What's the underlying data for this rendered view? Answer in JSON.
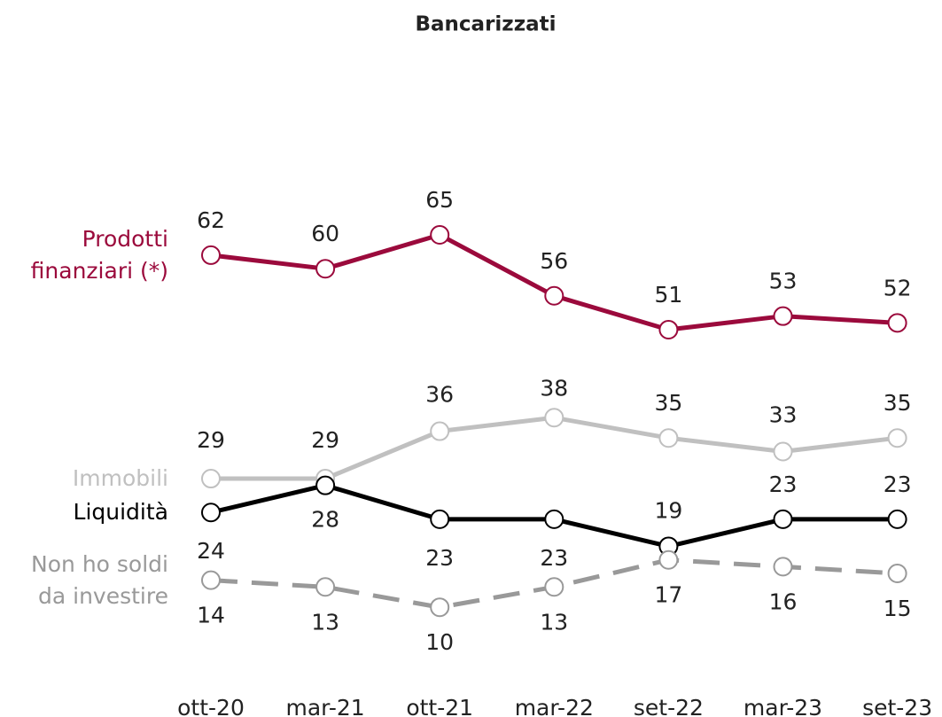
{
  "chart_data": {
    "type": "line",
    "title": "Bancarizzati",
    "categories": [
      "ott-20",
      "mar-21",
      "ott-21",
      "mar-22",
      "set-22",
      "mar-23",
      "set-23"
    ],
    "series": [
      {
        "name": "Prodotti finanziari (*)",
        "color": "#9b0a3c",
        "line_style": "solid",
        "values": [
          62,
          60,
          65,
          56,
          51,
          53,
          52
        ]
      },
      {
        "name": "Immobili",
        "color": "#c0c0c0",
        "line_style": "solid",
        "values": [
          29,
          29,
          36,
          38,
          35,
          33,
          35
        ]
      },
      {
        "name": "Liquidità",
        "color": "#000000",
        "line_style": "solid",
        "values": [
          24,
          28,
          23,
          23,
          19,
          23,
          23
        ]
      },
      {
        "name": "Non ho soldi da investire",
        "color": "#999999",
        "line_style": "dashed",
        "values": [
          14,
          13,
          10,
          13,
          17,
          16,
          15
        ]
      }
    ]
  }
}
